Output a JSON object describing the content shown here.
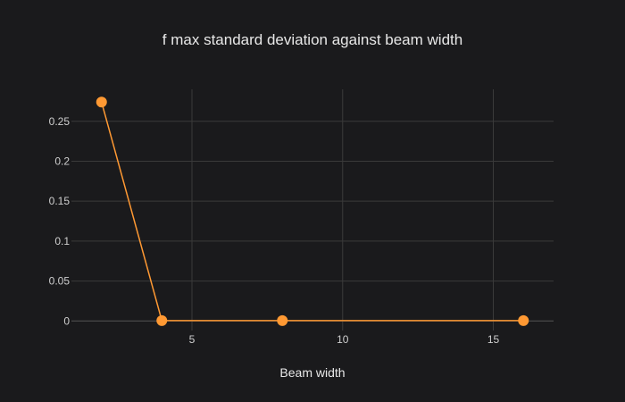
{
  "chart_data": {
    "type": "line",
    "title": "f max standard deviation against beam width",
    "xlabel": "Beam width",
    "ylabel": "",
    "x": [
      2,
      4,
      8,
      16
    ],
    "series": [
      {
        "values": [
          0.274,
          0.0005,
          0.0005,
          0.0005
        ]
      }
    ],
    "xlim": [
      1,
      17
    ],
    "ylim": [
      -0.012,
      0.29
    ],
    "xticks": [
      5,
      10,
      15
    ],
    "xtick_labels": [
      "5",
      "10",
      "15"
    ],
    "yticks": [
      0,
      0.05,
      0.1,
      0.15,
      0.2,
      0.25
    ],
    "ytick_labels": [
      "0",
      "0.05",
      "0.1",
      "0.15",
      "0.2",
      "0.25"
    ],
    "grid": true,
    "legend": "none",
    "colors": {
      "background": "#1a1a1c",
      "series": "#ff9933",
      "grid": "#3a3a3a"
    }
  }
}
